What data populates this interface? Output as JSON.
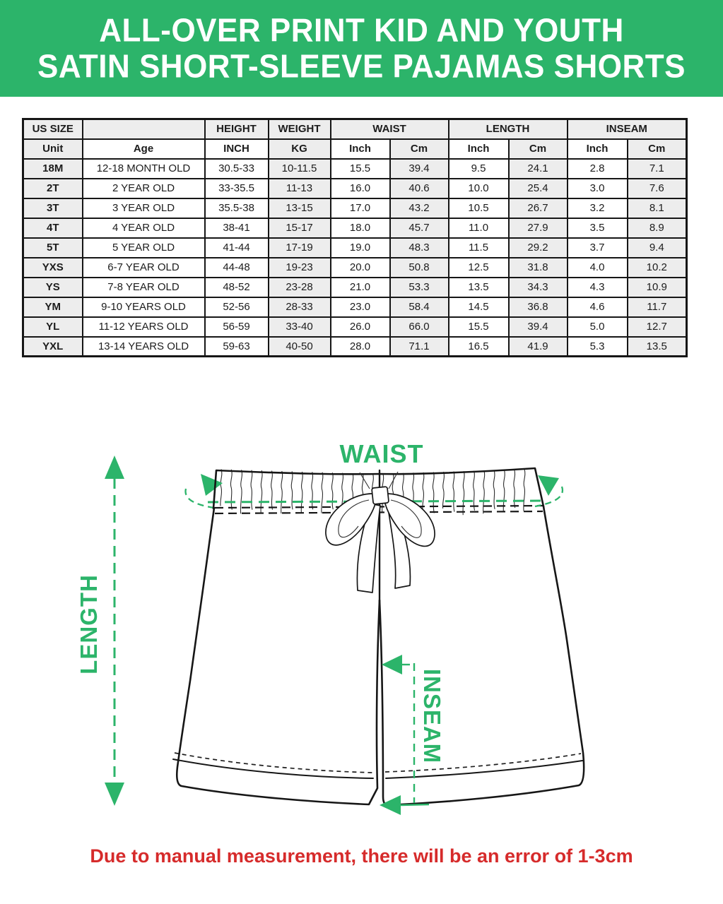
{
  "header": {
    "title_line1": "ALL-OVER PRINT KID AND YOUTH",
    "title_line2": "SATIN SHORT-SLEEVE PAJAMAS SHORTS"
  },
  "table": {
    "header_row1": [
      "US SIZE",
      "",
      "HEIGHT",
      "WEIGHT",
      "WAIST",
      "LENGTH",
      "INSEAM"
    ],
    "header_row2": [
      "Unit",
      "Age",
      "INCH",
      "KG",
      "Inch",
      "Cm",
      "Inch",
      "Cm",
      "Inch",
      "Cm"
    ],
    "rows": [
      [
        "18M",
        "12-18 MONTH OLD",
        "30.5-33",
        "10-11.5",
        "15.5",
        "39.4",
        "9.5",
        "24.1",
        "2.8",
        "7.1"
      ],
      [
        "2T",
        "2 YEAR OLD",
        "33-35.5",
        "11-13",
        "16.0",
        "40.6",
        "10.0",
        "25.4",
        "3.0",
        "7.6"
      ],
      [
        "3T",
        "3 YEAR OLD",
        "35.5-38",
        "13-15",
        "17.0",
        "43.2",
        "10.5",
        "26.7",
        "3.2",
        "8.1"
      ],
      [
        "4T",
        "4 YEAR OLD",
        "38-41",
        "15-17",
        "18.0",
        "45.7",
        "11.0",
        "27.9",
        "3.5",
        "8.9"
      ],
      [
        "5T",
        "5 YEAR OLD",
        "41-44",
        "17-19",
        "19.0",
        "48.3",
        "11.5",
        "29.2",
        "3.7",
        "9.4"
      ],
      [
        "YXS",
        "6-7 YEAR OLD",
        "44-48",
        "19-23",
        "20.0",
        "50.8",
        "12.5",
        "31.8",
        "4.0",
        "10.2"
      ],
      [
        "YS",
        "7-8 YEAR OLD",
        "48-52",
        "23-28",
        "21.0",
        "53.3",
        "13.5",
        "34.3",
        "4.3",
        "10.9"
      ],
      [
        "YM",
        "9-10 YEARS OLD",
        "52-56",
        "28-33",
        "23.0",
        "58.4",
        "14.5",
        "36.8",
        "4.6",
        "11.7"
      ],
      [
        "YL",
        "11-12 YEARS OLD",
        "56-59",
        "33-40",
        "26.0",
        "66.0",
        "15.5",
        "39.4",
        "5.0",
        "12.7"
      ],
      [
        "YXL",
        "13-14 YEARS OLD",
        "59-63",
        "40-50",
        "28.0",
        "71.1",
        "16.5",
        "41.9",
        "5.3",
        "13.5"
      ]
    ]
  },
  "diagram": {
    "waist_label": "WAIST",
    "length_label": "LENGTH",
    "inseam_label": "INSEAM"
  },
  "footer": {
    "note": "Due to manual measurement, there will be an error of 1-3cm"
  },
  "colors": {
    "green": "#2CB46A",
    "red": "#D62B2B",
    "ink": "#161616",
    "cellgray": "#EDEDED"
  }
}
